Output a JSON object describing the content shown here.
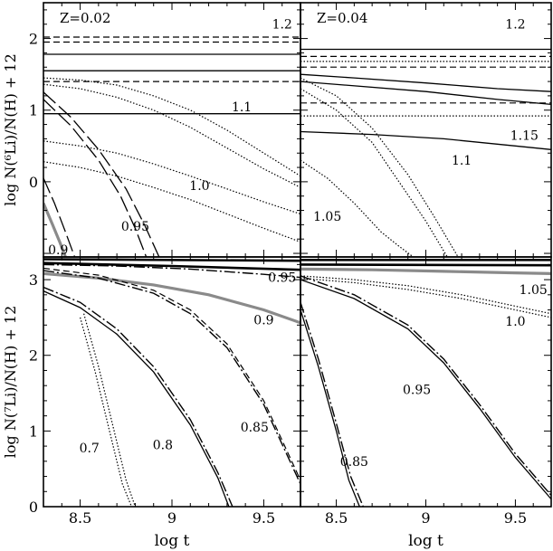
{
  "chart_data": [
    {
      "type": "line",
      "panel": "top-left",
      "annotation": "Z=0.02",
      "ylabel": "log N(⁶Li)/N(H) + 12",
      "xlabel": "",
      "xlim": [
        8.3,
        9.7
      ],
      "ylim": [
        -1.05,
        2.5
      ],
      "xticks": [
        8.5,
        9,
        9.5
      ],
      "yticks": [
        0,
        1,
        2
      ],
      "show_xtick_labels": false,
      "show_ytick_labels": true,
      "curve_labels": [
        {
          "text": "1.2",
          "x": 9.6,
          "y": 2.2
        },
        {
          "text": "1.1",
          "x": 9.38,
          "y": 1.05
        },
        {
          "text": "1.0",
          "x": 9.15,
          "y": -0.05
        },
        {
          "text": "0.95",
          "x": 8.8,
          "y": -0.62
        },
        {
          "text": "0.9",
          "x": 8.38,
          "y": -0.95
        }
      ],
      "series": [
        {
          "style": "dashed",
          "x": [
            8.3,
            9.7
          ],
          "y": [
            2.02,
            2.02
          ]
        },
        {
          "style": "dashed",
          "x": [
            8.3,
            9.7
          ],
          "y": [
            1.95,
            1.95
          ]
        },
        {
          "style": "solid",
          "x": [
            8.3,
            9.7
          ],
          "y": [
            1.78,
            1.78
          ]
        },
        {
          "style": "solid",
          "x": [
            8.3,
            9.7
          ],
          "y": [
            1.55,
            1.55
          ]
        },
        {
          "style": "dashed",
          "x": [
            8.3,
            9.7
          ],
          "y": [
            1.4,
            1.4
          ]
        },
        {
          "style": "solid",
          "x": [
            8.3,
            9.7
          ],
          "y": [
            0.95,
            0.95
          ]
        },
        {
          "style": "dotted",
          "x": [
            8.3,
            8.5,
            8.7,
            8.9,
            9.1,
            9.3,
            9.5,
            9.7
          ],
          "y": [
            1.45,
            1.42,
            1.35,
            1.2,
            1.0,
            0.72,
            0.4,
            0.08
          ]
        },
        {
          "style": "dotted",
          "x": [
            8.3,
            8.5,
            8.7,
            8.9,
            9.1,
            9.3,
            9.5,
            9.7
          ],
          "y": [
            1.36,
            1.3,
            1.18,
            1.0,
            0.76,
            0.47,
            0.18,
            -0.08
          ]
        },
        {
          "style": "dotted",
          "x": [
            8.3,
            8.5,
            8.7,
            8.9,
            9.1,
            9.3,
            9.5,
            9.7
          ],
          "y": [
            0.57,
            0.5,
            0.4,
            0.25,
            0.08,
            -0.1,
            -0.28,
            -0.45
          ]
        },
        {
          "style": "dotted",
          "x": [
            8.3,
            8.5,
            8.7,
            8.9,
            9.1,
            9.3,
            9.5,
            9.7
          ],
          "y": [
            0.28,
            0.2,
            0.08,
            -0.08,
            -0.25,
            -0.45,
            -0.65,
            -0.84
          ]
        },
        {
          "style": "long-dash",
          "x": [
            8.3,
            8.45,
            8.6,
            8.75,
            8.85,
            8.93
          ],
          "y": [
            1.25,
            0.9,
            0.45,
            -0.1,
            -0.6,
            -1.05
          ]
        },
        {
          "style": "long-dash",
          "x": [
            8.3,
            8.45,
            8.6,
            8.72,
            8.8,
            8.86
          ],
          "y": [
            1.15,
            0.78,
            0.3,
            -0.2,
            -0.65,
            -1.05
          ]
        },
        {
          "style": "long-dash",
          "x": [
            8.3,
            8.36,
            8.42,
            8.47
          ],
          "y": [
            0.05,
            -0.3,
            -0.7,
            -1.05
          ]
        },
        {
          "style": "gray",
          "x": [
            8.3,
            8.35,
            8.39,
            8.42
          ],
          "y": [
            -0.3,
            -0.6,
            -0.85,
            -1.05
          ]
        }
      ]
    },
    {
      "type": "line",
      "panel": "top-right",
      "annotation": "Z=0.04",
      "ylabel": "",
      "xlabel": "",
      "xlim": [
        8.3,
        9.7
      ],
      "ylim": [
        -1.05,
        2.5
      ],
      "xticks": [
        8.5,
        9,
        9.5
      ],
      "yticks": [
        0,
        1,
        2
      ],
      "show_xtick_labels": false,
      "show_ytick_labels": false,
      "curve_labels": [
        {
          "text": "1.2",
          "x": 9.5,
          "y": 2.2
        },
        {
          "text": "1.15",
          "x": 9.55,
          "y": 0.65
        },
        {
          "text": "1.1",
          "x": 9.2,
          "y": 0.3
        },
        {
          "text": "1.05",
          "x": 8.45,
          "y": -0.48
        }
      ],
      "series": [
        {
          "style": "solid",
          "x": [
            8.3,
            9.7
          ],
          "y": [
            1.85,
            1.85
          ]
        },
        {
          "style": "dashed",
          "x": [
            8.3,
            9.7
          ],
          "y": [
            1.75,
            1.75
          ]
        },
        {
          "style": "dotted",
          "x": [
            8.3,
            9.7
          ],
          "y": [
            1.68,
            1.68
          ]
        },
        {
          "style": "dashed",
          "x": [
            8.3,
            9.7
          ],
          "y": [
            1.6,
            1.6
          ]
        },
        {
          "style": "solid",
          "x": [
            8.3,
            8.6,
            9.0,
            9.4,
            9.7
          ],
          "y": [
            1.5,
            1.45,
            1.38,
            1.3,
            1.26
          ]
        },
        {
          "style": "dashed",
          "x": [
            8.3,
            9.7
          ],
          "y": [
            1.1,
            1.1
          ]
        },
        {
          "style": "dotted",
          "x": [
            8.3,
            9.7
          ],
          "y": [
            0.92,
            0.92
          ]
        },
        {
          "style": "solid",
          "x": [
            8.3,
            8.7,
            9.1,
            9.5,
            9.7
          ],
          "y": [
            0.7,
            0.66,
            0.6,
            0.5,
            0.45
          ]
        },
        {
          "style": "solid",
          "x": [
            8.3,
            9.0,
            9.4,
            9.7
          ],
          "y": [
            1.4,
            1.26,
            1.15,
            1.08
          ]
        },
        {
          "style": "dotted",
          "x": [
            8.3,
            8.5,
            8.7,
            8.9,
            9.05,
            9.18
          ],
          "y": [
            1.45,
            1.2,
            0.75,
            0.1,
            -0.5,
            -1.05
          ]
        },
        {
          "style": "dotted",
          "x": [
            8.3,
            8.5,
            8.7,
            8.85,
            9.0,
            9.12
          ],
          "y": [
            1.3,
            1.0,
            0.55,
            0.0,
            -0.55,
            -1.05
          ]
        },
        {
          "style": "dotted",
          "x": [
            8.3,
            8.45,
            8.6,
            8.75,
            8.85,
            8.93
          ],
          "y": [
            0.3,
            0.05,
            -0.3,
            -0.7,
            -0.9,
            -1.05
          ]
        }
      ]
    },
    {
      "type": "line",
      "panel": "bottom-left",
      "annotation": "",
      "ylabel": "log N(⁷Li)/N(H) + 12",
      "xlabel": "log t",
      "xlim": [
        8.3,
        9.7
      ],
      "ylim": [
        0,
        3.3
      ],
      "xticks": [
        8.5,
        9,
        9.5
      ],
      "yticks": [
        0,
        1,
        2,
        3
      ],
      "show_xtick_labels": true,
      "show_ytick_labels": true,
      "curve_labels": [
        {
          "text": "0.95",
          "x": 9.6,
          "y": 3.03
        },
        {
          "text": "0.9",
          "x": 9.5,
          "y": 2.47
        },
        {
          "text": "0.85",
          "x": 9.45,
          "y": 1.05
        },
        {
          "text": "0.8",
          "x": 8.95,
          "y": 0.82
        },
        {
          "text": "0.7",
          "x": 8.55,
          "y": 0.78
        }
      ],
      "series": [
        {
          "style": "thick",
          "x": [
            8.3,
            9.7
          ],
          "y": [
            3.27,
            3.25
          ]
        },
        {
          "style": "thick",
          "x": [
            8.3,
            9.0,
            9.7
          ],
          "y": [
            3.22,
            3.18,
            3.13
          ]
        },
        {
          "style": "dash-dot",
          "x": [
            8.3,
            8.7,
            9.1,
            9.5,
            9.7
          ],
          "y": [
            3.2,
            3.18,
            3.14,
            3.07,
            3.03
          ]
        },
        {
          "style": "gray",
          "x": [
            8.3,
            8.6,
            8.9,
            9.2,
            9.5,
            9.7
          ],
          "y": [
            3.08,
            3.02,
            2.93,
            2.8,
            2.6,
            2.43
          ]
        },
        {
          "style": "dashed",
          "x": [
            8.3,
            8.6,
            8.9,
            9.1,
            9.3,
            9.5,
            9.7
          ],
          "y": [
            3.15,
            3.06,
            2.86,
            2.6,
            2.15,
            1.4,
            0.35
          ]
        },
        {
          "style": "dash-dot",
          "x": [
            8.3,
            8.6,
            8.9,
            9.1,
            9.3,
            9.5,
            9.7
          ],
          "y": [
            3.12,
            3.02,
            2.82,
            2.55,
            2.1,
            1.35,
            0.3
          ]
        },
        {
          "style": "dash-dot",
          "x": [
            8.3,
            8.5,
            8.7,
            8.9,
            9.1,
            9.25,
            9.33
          ],
          "y": [
            2.9,
            2.7,
            2.35,
            1.85,
            1.15,
            0.45,
            0.0
          ]
        },
        {
          "style": "solid",
          "x": [
            8.3,
            8.5,
            8.7,
            8.9,
            9.1,
            9.25,
            9.31
          ],
          "y": [
            2.85,
            2.63,
            2.28,
            1.78,
            1.08,
            0.38,
            0.0
          ]
        },
        {
          "style": "dotted",
          "x": [
            8.52,
            8.6,
            8.68,
            8.75,
            8.8
          ],
          "y": [
            2.55,
            1.85,
            1.05,
            0.35,
            0.0
          ]
        },
        {
          "style": "dotted",
          "x": [
            8.5,
            8.58,
            8.66,
            8.73,
            8.78
          ],
          "y": [
            2.5,
            1.8,
            1.0,
            0.3,
            0.0
          ]
        }
      ]
    },
    {
      "type": "line",
      "panel": "bottom-right",
      "annotation": "",
      "ylabel": "",
      "xlabel": "log t",
      "xlim": [
        8.3,
        9.7
      ],
      "ylim": [
        0,
        3.3
      ],
      "xticks": [
        8.5,
        9,
        9.5
      ],
      "yticks": [
        0,
        1,
        2,
        3
      ],
      "show_xtick_labels": true,
      "show_ytick_labels": false,
      "curve_labels": [
        {
          "text": "1.05",
          "x": 9.6,
          "y": 2.87
        },
        {
          "text": "1.0",
          "x": 9.5,
          "y": 2.45
        },
        {
          "text": "0.95",
          "x": 8.95,
          "y": 1.55
        },
        {
          "text": "0.85",
          "x": 8.6,
          "y": 0.6
        }
      ],
      "series": [
        {
          "style": "thick",
          "x": [
            8.3,
            9.7
          ],
          "y": [
            3.26,
            3.26
          ]
        },
        {
          "style": "thick",
          "x": [
            8.3,
            9.7
          ],
          "y": [
            3.2,
            3.19
          ]
        },
        {
          "style": "gray",
          "x": [
            8.3,
            8.7,
            9.1,
            9.5,
            9.7
          ],
          "y": [
            3.14,
            3.13,
            3.11,
            3.09,
            3.08
          ]
        },
        {
          "style": "dotted",
          "x": [
            8.3,
            8.6,
            8.9,
            9.2,
            9.5,
            9.7
          ],
          "y": [
            3.05,
            3.0,
            2.92,
            2.8,
            2.65,
            2.55
          ]
        },
        {
          "style": "dotted",
          "x": [
            8.3,
            8.6,
            8.9,
            9.2,
            9.5,
            9.7
          ],
          "y": [
            3.02,
            2.96,
            2.87,
            2.75,
            2.6,
            2.5
          ]
        },
        {
          "style": "dash-dot",
          "x": [
            8.3,
            8.6,
            8.9,
            9.1,
            9.3,
            9.5,
            9.7
          ],
          "y": [
            3.05,
            2.8,
            2.4,
            1.95,
            1.35,
            0.7,
            0.15
          ]
        },
        {
          "style": "solid",
          "x": [
            8.3,
            8.6,
            8.9,
            9.1,
            9.3,
            9.5,
            9.7
          ],
          "y": [
            3.0,
            2.75,
            2.35,
            1.9,
            1.3,
            0.65,
            0.1
          ]
        },
        {
          "style": "dash-dot",
          "x": [
            8.3,
            8.4,
            8.5,
            8.58,
            8.65
          ],
          "y": [
            2.7,
            1.95,
            1.1,
            0.4,
            0.0
          ]
        },
        {
          "style": "solid",
          "x": [
            8.3,
            8.4,
            8.5,
            8.57,
            8.63
          ],
          "y": [
            2.6,
            1.85,
            1.0,
            0.35,
            0.0
          ]
        }
      ]
    }
  ]
}
